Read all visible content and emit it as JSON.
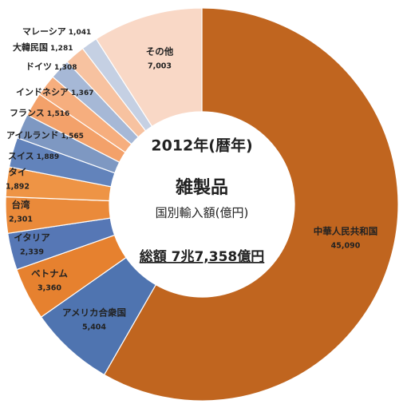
{
  "chart_data": {
    "type": "donut",
    "center_text": [
      "2012年(暦年)",
      "雑製品",
      "国別輸入額(億円)",
      "総額  7兆7,358億円"
    ],
    "categories": [
      "中華人民共和国",
      "アメリカ合衆国",
      "ベトナム",
      "イタリア",
      "台湾",
      "タイ",
      "スイス",
      "アイルランド",
      "フランス",
      "インドネシア",
      "ドイツ",
      "大韓民国",
      "マレーシア",
      "その他"
    ],
    "values": [
      45090,
      5404,
      3360,
      2339,
      2301,
      1892,
      1889,
      1565,
      1516,
      1367,
      1308,
      1281,
      1041,
      7003
    ],
    "value_labels": [
      "45,090",
      "5,404",
      "3,360",
      "2,339",
      "2,301",
      "1,892",
      "1,889",
      "1,565",
      "1,516",
      "1,367",
      "1,308",
      "1,281",
      "1,041",
      "7,003"
    ],
    "colors": [
      "#c0651f",
      "#4f74b0",
      "#e6812f",
      "#5677b5",
      "#ea8a3a",
      "#ee9445",
      "#6283bb",
      "#7e98c2",
      "#f3a16a",
      "#f6ae7e",
      "#a6b8d6",
      "#f7c2a0",
      "#c5d0e3",
      "#f9d8c6"
    ]
  }
}
